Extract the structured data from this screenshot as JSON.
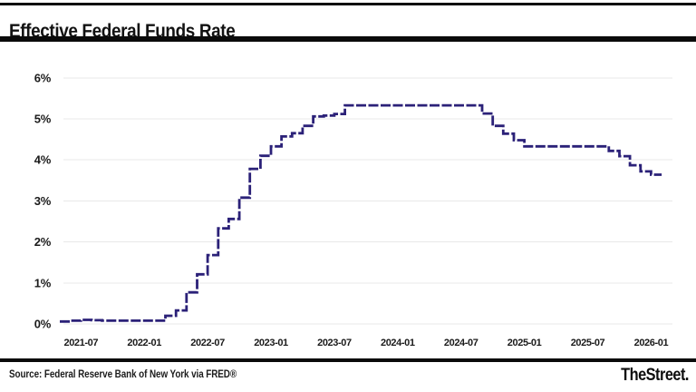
{
  "header": {
    "title": "Effective Federal Funds Rate"
  },
  "footer": {
    "source": "Source: Federal Reserve Bank of New York via FRED®",
    "brand": "TheStreet."
  },
  "colors": {
    "line": "#2b2178",
    "grid": "#e8e8e8",
    "rule": "#0b0b0b",
    "background": "#ffffff"
  },
  "chart_data": {
    "type": "line",
    "step_interpolation": true,
    "title": "Effective Federal Funds Rate",
    "xlabel": "",
    "ylabel": "",
    "unit": "percent",
    "ylim": [
      0,
      6
    ],
    "grid": "horizontal",
    "legend": "none",
    "y_tick_labels": [
      "0%",
      "1%",
      "2%",
      "3%",
      "4%",
      "5%",
      "6%"
    ],
    "x_tick_labels": [
      "2021-07",
      "2022-01",
      "2022-07",
      "2023-01",
      "2023-07",
      "2024-01",
      "2024-07",
      "2025-01",
      "2025-07",
      "2026-01"
    ],
    "x_tick_month_indices": [
      2,
      8,
      14,
      20,
      26,
      32,
      38,
      44,
      50,
      56
    ],
    "line_color": "#2b2178",
    "grid_color": "#e8e8e8",
    "series": [
      {
        "name": "Effective Federal Funds Rate",
        "months": [
          "2021-05",
          "2021-06",
          "2021-07",
          "2021-08",
          "2021-09",
          "2021-10",
          "2021-11",
          "2021-12",
          "2022-01",
          "2022-02",
          "2022-03",
          "2022-04",
          "2022-05",
          "2022-06",
          "2022-07",
          "2022-08",
          "2022-09",
          "2022-10",
          "2022-11",
          "2022-12",
          "2023-01",
          "2023-02",
          "2023-03",
          "2023-04",
          "2023-05",
          "2023-06",
          "2023-07",
          "2023-08",
          "2023-09",
          "2023-10",
          "2023-11",
          "2023-12",
          "2024-01",
          "2024-02",
          "2024-03",
          "2024-04",
          "2024-05",
          "2024-06",
          "2024-07",
          "2024-08",
          "2024-09",
          "2024-10",
          "2024-11",
          "2024-12",
          "2025-01",
          "2025-02",
          "2025-03",
          "2025-04",
          "2025-05",
          "2025-06",
          "2025-07",
          "2025-08",
          "2025-09",
          "2025-10",
          "2025-11",
          "2025-12",
          "2026-01"
        ],
        "values": [
          0.06,
          0.08,
          0.1,
          0.09,
          0.08,
          0.08,
          0.08,
          0.08,
          0.08,
          0.08,
          0.2,
          0.33,
          0.77,
          1.21,
          1.68,
          2.33,
          2.56,
          3.08,
          3.78,
          4.1,
          4.33,
          4.57,
          4.65,
          4.83,
          5.06,
          5.08,
          5.12,
          5.33,
          5.33,
          5.33,
          5.33,
          5.33,
          5.33,
          5.33,
          5.33,
          5.33,
          5.33,
          5.33,
          5.33,
          5.33,
          5.13,
          4.83,
          4.64,
          4.48,
          4.33,
          4.33,
          4.33,
          4.33,
          4.33,
          4.33,
          4.33,
          4.33,
          4.22,
          4.09,
          3.87,
          3.72,
          3.64
        ]
      }
    ]
  }
}
